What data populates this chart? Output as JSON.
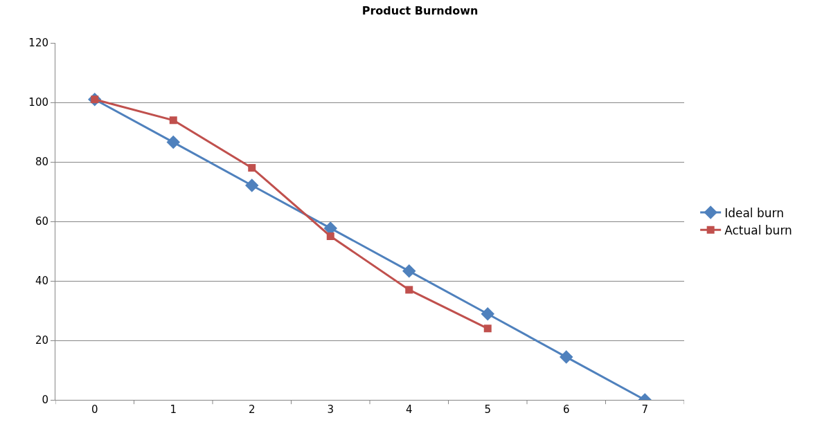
{
  "chart_data": {
    "type": "line",
    "title": "Product Burndown",
    "categories": [
      "0",
      "1",
      "2",
      "3",
      "4",
      "5",
      "6",
      "7"
    ],
    "series": [
      {
        "name": "Ideal burn",
        "color": "#4f81bd",
        "marker": "diamond",
        "values": [
          101,
          86.6,
          72.1,
          57.7,
          43.3,
          28.9,
          14.4,
          0
        ]
      },
      {
        "name": "Actual burn",
        "color": "#c0504d",
        "marker": "square",
        "values": [
          101,
          94,
          78,
          55,
          37,
          24,
          null,
          null
        ]
      }
    ],
    "ylim": [
      0,
      120
    ],
    "yticks": [
      0,
      20,
      40,
      60,
      80,
      100,
      120
    ],
    "grid": "y",
    "legend": "right",
    "line_style": "solid"
  }
}
